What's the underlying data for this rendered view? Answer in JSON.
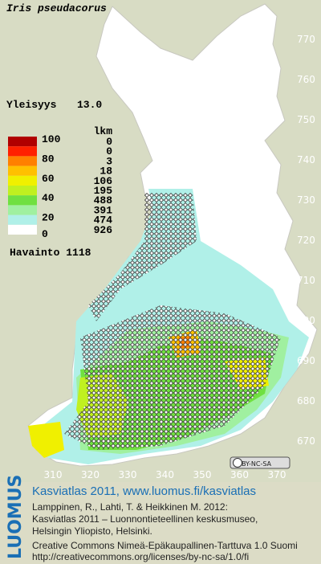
{
  "map": {
    "title": "Iris pseudacorus",
    "frequency_label": "Yleisyys",
    "frequency_value": "13.0",
    "legend": {
      "count_heading": "lkm",
      "scale_labels": [
        "100",
        "80",
        "60",
        "40",
        "20",
        "0"
      ],
      "colors": [
        "#b00000",
        "#ff2000",
        "#ff8000",
        "#ffc000",
        "#f0f000",
        "#c0f020",
        "#70e040",
        "#a0f0a0",
        "#b0f0e8",
        "#ffffff"
      ],
      "counts": [
        "0",
        "0",
        "3",
        "18",
        "106",
        "195",
        "488",
        "391",
        "474",
        "926"
      ],
      "observations": "Havainto 1118"
    },
    "y_labels": [
      "770",
      "760",
      "750",
      "740",
      "730",
      "720",
      "710",
      "700",
      "690",
      "680",
      "670"
    ],
    "x_labels": [
      "310",
      "320",
      "330",
      "340",
      "350",
      "360",
      "370"
    ],
    "license_badge": "BY-NC-SA"
  },
  "footer": {
    "brand": "LUOMUS",
    "headline": "Kasviatlas 2011, www.luomus.fi/kasviatlas",
    "citation": [
      "Lamppinen, R., Lahti, T. & Heikkinen M. 2012:",
      "Kasviatlas 2011 – Luonnontieteellinen keskusmuseo,",
      "Helsingin Yliopisto, Helsinki."
    ],
    "license": [
      "Creative Commons Nimeä-Epäkaupallinen-Tarttuva 1.0 Suomi",
      "http://creativecommons.org/licenses/by-nc-sa/1.0/fi"
    ]
  }
}
